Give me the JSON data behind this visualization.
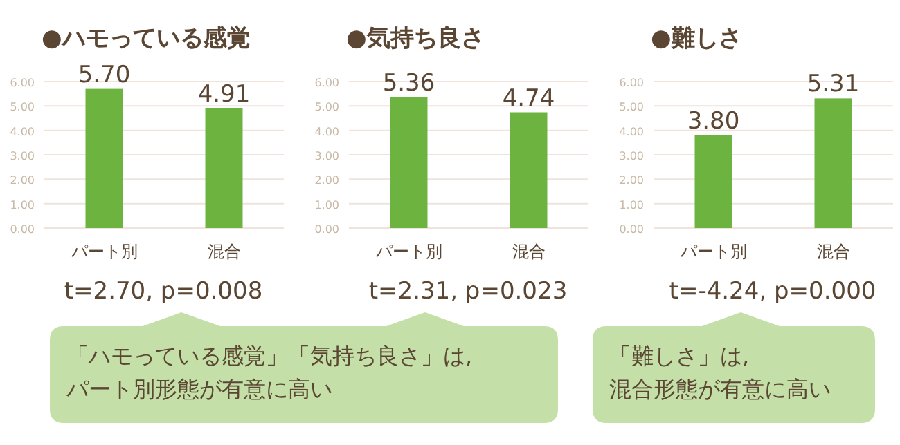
{
  "chart_data": [
    {
      "type": "bar",
      "title": "●ハモっている感覚",
      "categories": [
        "パート別",
        "混合"
      ],
      "values": [
        5.7,
        4.91
      ],
      "value_labels": [
        "5.70",
        "4.91"
      ],
      "color": "#6db33f",
      "ylim": [
        0,
        6
      ],
      "yticks": [
        {
          "value": 0,
          "label": "0.00"
        },
        {
          "value": 1,
          "label": "1.00"
        },
        {
          "value": 2,
          "label": "2.00"
        },
        {
          "value": 3,
          "label": "3.00"
        },
        {
          "value": 4,
          "label": "4.00"
        },
        {
          "value": 5,
          "label": "5.00"
        },
        {
          "value": 6,
          "label": "6.00"
        }
      ],
      "grid": "y",
      "annotations": [
        "t=2.70, p=0.008",
        "「ハモっている感覚」「気持ち良さ」は,\nパート別形態が有意に高い"
      ]
    },
    {
      "type": "bar",
      "title": "●気持ち良さ",
      "categories": [
        "パート別",
        "混合"
      ],
      "values": [
        5.36,
        4.74
      ],
      "value_labels": [
        "5.36",
        "4.74"
      ],
      "color": "#6db33f",
      "ylim": [
        0,
        6
      ],
      "yticks": [
        {
          "value": 0,
          "label": "0.00"
        },
        {
          "value": 1,
          "label": "1.00"
        },
        {
          "value": 2,
          "label": "2.00"
        },
        {
          "value": 3,
          "label": "3.00"
        },
        {
          "value": 4,
          "label": "4.00"
        },
        {
          "value": 5,
          "label": "5.00"
        },
        {
          "value": 6,
          "label": "6.00"
        }
      ],
      "grid": "y",
      "annotations": [
        "t=2.31, p=0.023"
      ]
    },
    {
      "type": "bar",
      "title": "●難しさ",
      "categories": [
        "パート別",
        "混合"
      ],
      "values": [
        3.8,
        5.31
      ],
      "value_labels": [
        "3.80",
        "5.31"
      ],
      "color": "#6db33f",
      "ylim": [
        0,
        6
      ],
      "yticks": [
        {
          "value": 0,
          "label": "0.00"
        },
        {
          "value": 1,
          "label": "1.00"
        },
        {
          "value": 2,
          "label": "2.00"
        },
        {
          "value": 3,
          "label": "3.00"
        },
        {
          "value": 4,
          "label": "4.00"
        },
        {
          "value": 5,
          "label": "5.00"
        },
        {
          "value": 6,
          "label": "6.00"
        }
      ],
      "grid": "y",
      "annotations": [
        "t=-4.24, p=0.000",
        "「難しさ」は,\n混合形態が有意に高い"
      ]
    }
  ]
}
